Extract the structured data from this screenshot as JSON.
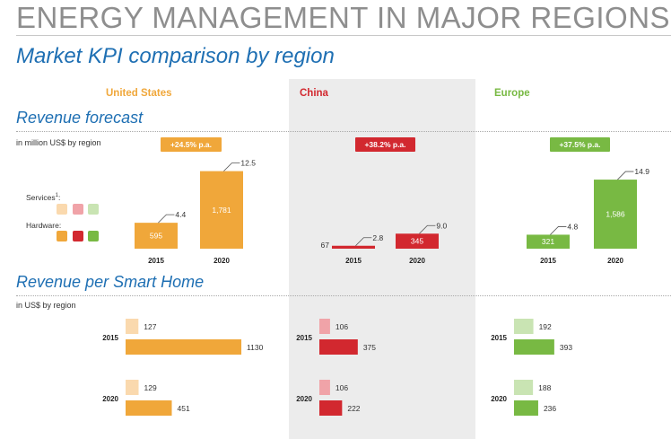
{
  "title": "ENERGY MANAGEMENT IN MAJOR REGIONS",
  "subtitle": "Market KPI comparison by region",
  "regions": [
    {
      "name": "United States",
      "color": "#f0a73a",
      "light_color": "#fad9ae",
      "growth": "+24.5% p.a."
    },
    {
      "name": "China",
      "color": "#d2282f",
      "light_color": "#f0a3a8",
      "growth": "+38.2% p.a."
    },
    {
      "name": "Europe",
      "color": "#78b943",
      "light_color": "#c9e4b3",
      "growth": "+37.5% p.a."
    }
  ],
  "revenue_forecast": {
    "title": "Revenue forecast",
    "unit": "in million US$ by region",
    "legend": {
      "services_label": "Services",
      "services_footnote": "1",
      "services_suffix": ":",
      "hardware_label": "Hardware:"
    }
  },
  "revenue_per_home": {
    "title": "Revenue per Smart Home",
    "unit": "in US$ by region"
  },
  "chart_data": [
    {
      "type": "bar",
      "title": "Revenue forecast",
      "ylabel": "in million US$ by region",
      "categories": [
        "2015",
        "2020"
      ],
      "series_note": "Hardware values shown inside/next to bars; Services values shown at callout",
      "regions": [
        {
          "region": "United States",
          "hardware": [
            595,
            1781
          ],
          "hardware_labels": [
            "595",
            "1,781"
          ],
          "services": [
            4.4,
            12.5
          ],
          "services_labels": [
            "4.4",
            "12.5"
          ]
        },
        {
          "region": "China",
          "hardware": [
            67,
            345
          ],
          "hardware_labels": [
            "67",
            "345"
          ],
          "services": [
            2.8,
            9.0
          ],
          "services_labels": [
            "2.8",
            "9.0"
          ]
        },
        {
          "region": "Europe",
          "hardware": [
            321,
            1586
          ],
          "hardware_labels": [
            "321",
            "1,586"
          ],
          "services": [
            4.8,
            14.9
          ],
          "services_labels": [
            "4.8",
            "14.9"
          ]
        }
      ]
    },
    {
      "type": "bar",
      "orientation": "horizontal",
      "title": "Revenue per Smart Home",
      "xlabel": "in US$ by region",
      "categories": [
        "2015",
        "2020"
      ],
      "regions": [
        {
          "region": "United States",
          "services": [
            127,
            129
          ],
          "hardware": [
            1130,
            451
          ]
        },
        {
          "region": "China",
          "services": [
            106,
            106
          ],
          "hardware": [
            375,
            222
          ]
        },
        {
          "region": "Europe",
          "services": [
            192,
            188
          ],
          "hardware": [
            393,
            236
          ]
        }
      ]
    }
  ]
}
